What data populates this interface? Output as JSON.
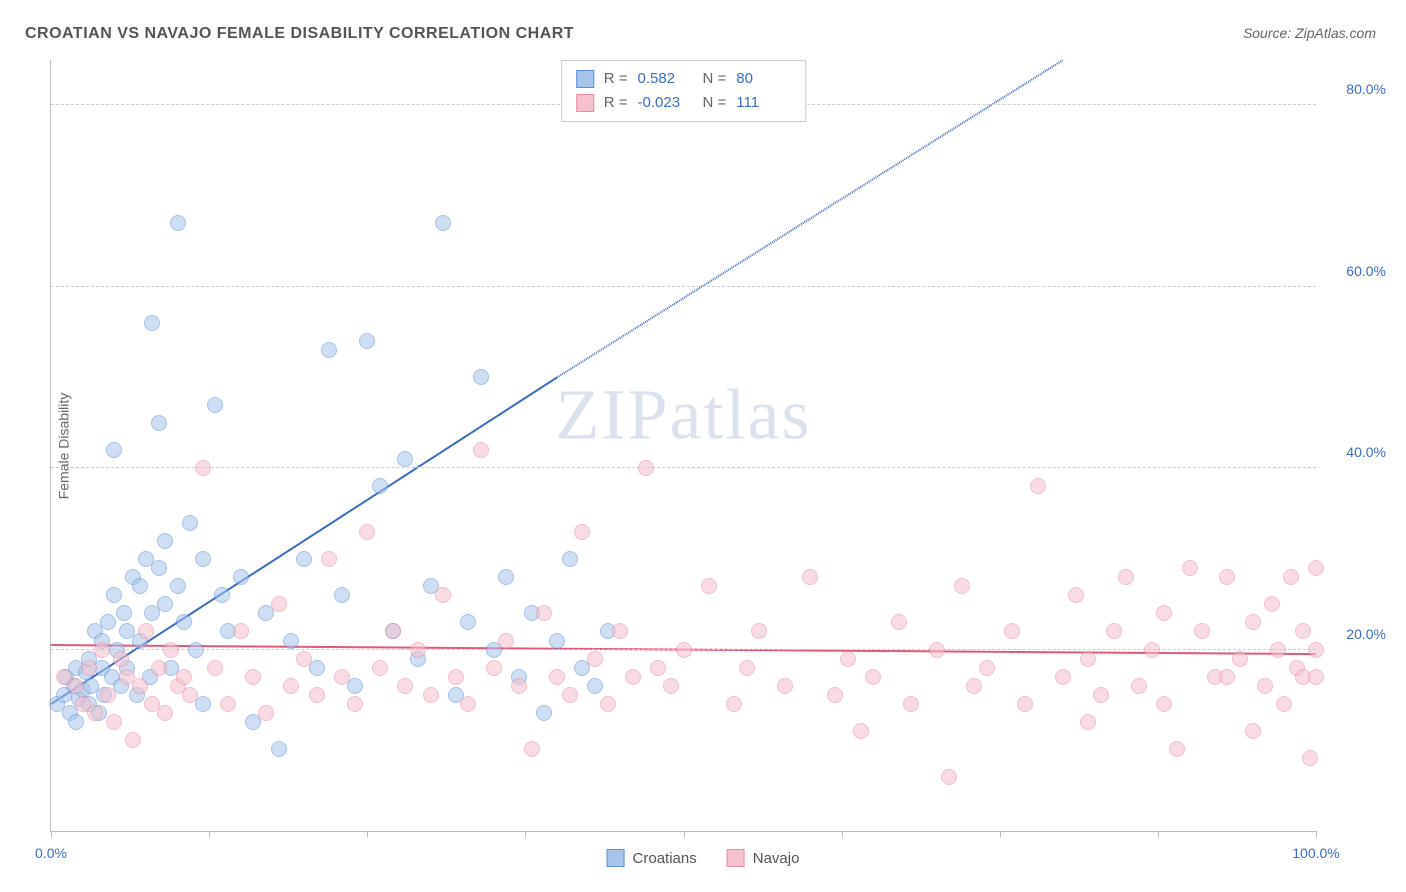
{
  "title": "CROATIAN VS NAVAJO FEMALE DISABILITY CORRELATION CHART",
  "source": "Source: ZipAtlas.com",
  "ylabel": "Female Disability",
  "watermark": {
    "bold": "ZIP",
    "rest": "atlas"
  },
  "chart": {
    "type": "scatter",
    "xlim": [
      0,
      100
    ],
    "ylim": [
      0,
      85
    ],
    "xticks": [
      0,
      12.5,
      25,
      37.5,
      50,
      62.5,
      75,
      87.5,
      100
    ],
    "xtick_labels": {
      "0": "0.0%",
      "100": "100.0%"
    },
    "ygrid": [
      20,
      40,
      60,
      80
    ],
    "ytick_labels": {
      "20": "20.0%",
      "40": "40.0%",
      "60": "60.0%",
      "80": "80.0%"
    },
    "background_color": "#ffffff",
    "grid_color": "#cccccc",
    "point_radius": 8,
    "point_opacity": 0.55,
    "series": [
      {
        "name": "Croatians",
        "fill": "#a7c4eb",
        "stroke": "#5e8fd6",
        "line_color": "#3b6cc4",
        "R": "0.582",
        "N": "80",
        "regression": {
          "x1": 0,
          "y1": 14,
          "x2": 40,
          "y2": 50,
          "dash_to_x": 80,
          "dash_to_y": 85
        },
        "points": [
          [
            0.5,
            14
          ],
          [
            1,
            15
          ],
          [
            1.2,
            17
          ],
          [
            1.5,
            13
          ],
          [
            1.8,
            16
          ],
          [
            2,
            12
          ],
          [
            2,
            18
          ],
          [
            2.2,
            14.5
          ],
          [
            2.5,
            15.5
          ],
          [
            2.8,
            17.5
          ],
          [
            3,
            14
          ],
          [
            3,
            19
          ],
          [
            3.2,
            16
          ],
          [
            3.5,
            22
          ],
          [
            3.8,
            13
          ],
          [
            4,
            21
          ],
          [
            4,
            18
          ],
          [
            4.2,
            15
          ],
          [
            4.5,
            23
          ],
          [
            4.8,
            17
          ],
          [
            5,
            42
          ],
          [
            5,
            26
          ],
          [
            5.2,
            20
          ],
          [
            5.5,
            16
          ],
          [
            5.8,
            24
          ],
          [
            6,
            18
          ],
          [
            6,
            22
          ],
          [
            6.5,
            28
          ],
          [
            6.8,
            15
          ],
          [
            7,
            27
          ],
          [
            7,
            21
          ],
          [
            7.5,
            30
          ],
          [
            7.8,
            17
          ],
          [
            8,
            24
          ],
          [
            8,
            56
          ],
          [
            8.5,
            29
          ],
          [
            8.5,
            45
          ],
          [
            9,
            25
          ],
          [
            9,
            32
          ],
          [
            9.5,
            18
          ],
          [
            10,
            67
          ],
          [
            10,
            27
          ],
          [
            10.5,
            23
          ],
          [
            11,
            34
          ],
          [
            11.5,
            20
          ],
          [
            12,
            30
          ],
          [
            12,
            14
          ],
          [
            13,
            47
          ],
          [
            13.5,
            26
          ],
          [
            14,
            22
          ],
          [
            15,
            28
          ],
          [
            16,
            12
          ],
          [
            17,
            24
          ],
          [
            18,
            9
          ],
          [
            19,
            21
          ],
          [
            20,
            30
          ],
          [
            21,
            18
          ],
          [
            22,
            53
          ],
          [
            23,
            26
          ],
          [
            24,
            16
          ],
          [
            25,
            54
          ],
          [
            26,
            38
          ],
          [
            27,
            22
          ],
          [
            28,
            41
          ],
          [
            29,
            19
          ],
          [
            30,
            27
          ],
          [
            31,
            67
          ],
          [
            32,
            15
          ],
          [
            33,
            23
          ],
          [
            34,
            50
          ],
          [
            35,
            20
          ],
          [
            36,
            28
          ],
          [
            37,
            17
          ],
          [
            38,
            24
          ],
          [
            39,
            13
          ],
          [
            40,
            21
          ],
          [
            41,
            30
          ],
          [
            42,
            18
          ],
          [
            43,
            16
          ],
          [
            44,
            22
          ]
        ]
      },
      {
        "name": "Navajo",
        "fill": "#f5c1cd",
        "stroke": "#e88aa0",
        "line_color": "#e05a7a",
        "R": "-0.023",
        "N": "111",
        "regression": {
          "x1": 0,
          "y1": 20.5,
          "x2": 100,
          "y2": 19.5
        },
        "points": [
          [
            1,
            17
          ],
          [
            2,
            16
          ],
          [
            2.5,
            14
          ],
          [
            3,
            18
          ],
          [
            3.5,
            13
          ],
          [
            4,
            20
          ],
          [
            4.5,
            15
          ],
          [
            5,
            12
          ],
          [
            5.5,
            19
          ],
          [
            6,
            17
          ],
          [
            6.5,
            10
          ],
          [
            7,
            16
          ],
          [
            7.5,
            22
          ],
          [
            8,
            14
          ],
          [
            8.5,
            18
          ],
          [
            9,
            13
          ],
          [
            9.5,
            20
          ],
          [
            10,
            16
          ],
          [
            10.5,
            17
          ],
          [
            11,
            15
          ],
          [
            12,
            40
          ],
          [
            13,
            18
          ],
          [
            14,
            14
          ],
          [
            15,
            22
          ],
          [
            16,
            17
          ],
          [
            17,
            13
          ],
          [
            18,
            25
          ],
          [
            19,
            16
          ],
          [
            20,
            19
          ],
          [
            21,
            15
          ],
          [
            22,
            30
          ],
          [
            23,
            17
          ],
          [
            24,
            14
          ],
          [
            25,
            33
          ],
          [
            26,
            18
          ],
          [
            27,
            22
          ],
          [
            28,
            16
          ],
          [
            29,
            20
          ],
          [
            30,
            15
          ],
          [
            31,
            26
          ],
          [
            32,
            17
          ],
          [
            33,
            14
          ],
          [
            34,
            42
          ],
          [
            35,
            18
          ],
          [
            36,
            21
          ],
          [
            37,
            16
          ],
          [
            38,
            9
          ],
          [
            39,
            24
          ],
          [
            40,
            17
          ],
          [
            41,
            15
          ],
          [
            42,
            33
          ],
          [
            43,
            19
          ],
          [
            44,
            14
          ],
          [
            45,
            22
          ],
          [
            46,
            17
          ],
          [
            47,
            40
          ],
          [
            48,
            18
          ],
          [
            49,
            16
          ],
          [
            50,
            20
          ],
          [
            52,
            27
          ],
          [
            54,
            14
          ],
          [
            55,
            18
          ],
          [
            56,
            22
          ],
          [
            58,
            16
          ],
          [
            60,
            28
          ],
          [
            62,
            15
          ],
          [
            63,
            19
          ],
          [
            64,
            11
          ],
          [
            65,
            17
          ],
          [
            67,
            23
          ],
          [
            68,
            14
          ],
          [
            70,
            20
          ],
          [
            71,
            6
          ],
          [
            72,
            27
          ],
          [
            73,
            16
          ],
          [
            74,
            18
          ],
          [
            76,
            22
          ],
          [
            77,
            14
          ],
          [
            78,
            38
          ],
          [
            80,
            17
          ],
          [
            81,
            26
          ],
          [
            82,
            19
          ],
          [
            83,
            15
          ],
          [
            84,
            22
          ],
          [
            85,
            28
          ],
          [
            86,
            16
          ],
          [
            87,
            20
          ],
          [
            88,
            14
          ],
          [
            89,
            9
          ],
          [
            90,
            29
          ],
          [
            91,
            22
          ],
          [
            92,
            17
          ],
          [
            93,
            28
          ],
          [
            94,
            19
          ],
          [
            95,
            23
          ],
          [
            96,
            16
          ],
          [
            96.5,
            25
          ],
          [
            97,
            20
          ],
          [
            97.5,
            14
          ],
          [
            98,
            28
          ],
          [
            98.5,
            18
          ],
          [
            99,
            22
          ],
          [
            99,
            17
          ],
          [
            99.5,
            8
          ],
          [
            100,
            29
          ],
          [
            100,
            20
          ],
          [
            100,
            17
          ],
          [
            93,
            17
          ],
          [
            95,
            11
          ],
          [
            88,
            24
          ],
          [
            82,
            12
          ]
        ]
      }
    ]
  },
  "legend_bottom": [
    {
      "label": "Croatians",
      "fill": "#a7c4eb",
      "stroke": "#5e8fd6"
    },
    {
      "label": "Navajo",
      "fill": "#f5c1cd",
      "stroke": "#e88aa0"
    }
  ]
}
